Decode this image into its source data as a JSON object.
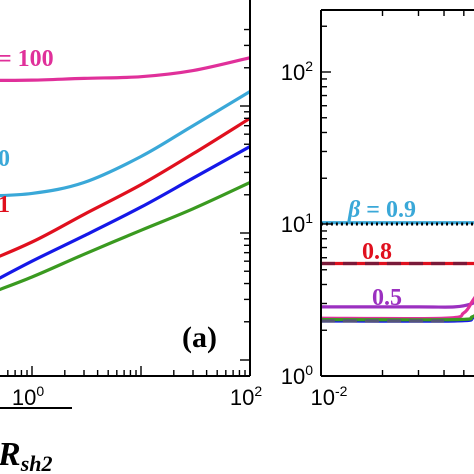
{
  "chart_data": [
    {
      "type": "line",
      "panel_label": "(a)",
      "x_scale": "log",
      "y_scale": "log",
      "xlim": [
        0.1,
        100
      ],
      "ylim": [
        0.8,
        450
      ],
      "x_tick_labels": [
        {
          "base": "10",
          "exp": "0",
          "value": 1
        },
        {
          "base": "10",
          "exp": "2",
          "value": 100
        }
      ],
      "xlabel_visible": "R",
      "xlabel_sub": "sh2",
      "grid": false,
      "series": [
        {
          "label": "= 100",
          "color": "#e0309a",
          "x": [
            0.1,
            0.3,
            1,
            3,
            10,
            30,
            100
          ],
          "y": [
            170,
            160,
            160,
            165,
            170,
            190,
            240
          ]
        },
        {
          "label": "0",
          "color": "#3aa8d8",
          "x": [
            0.1,
            0.3,
            1,
            3,
            10,
            30,
            100
          ],
          "y": [
            20,
            19.5,
            20.5,
            25,
            40,
            70,
            130
          ]
        },
        {
          "label": "1",
          "color": "#e0101e",
          "x": [
            0.1,
            0.3,
            1,
            3,
            10,
            30,
            100
          ],
          "y": [
            4,
            5.5,
            8.5,
            14,
            24,
            42,
            80
          ]
        },
        {
          "label": "",
          "color": "#1518e8",
          "x": [
            0.1,
            0.3,
            1,
            3,
            10,
            30,
            100
          ],
          "y": [
            2.2,
            3.5,
            6,
            9.5,
            16,
            27,
            48
          ]
        },
        {
          "label": "",
          "color": "#3a9a20",
          "x": [
            0.1,
            0.3,
            1,
            3,
            10,
            30,
            100
          ],
          "y": [
            1.9,
            3.0,
            4.5,
            6.8,
            10.5,
            15.5,
            25
          ]
        }
      ]
    },
    {
      "type": "line",
      "x_scale": "log",
      "y_scale": "log",
      "xlim": [
        0.01,
        0.06
      ],
      "ylim": [
        1,
        200
      ],
      "x_tick_labels": [
        {
          "base": "10",
          "exp": "-2",
          "value": 0.01
        }
      ],
      "y_tick_labels": [
        {
          "base": "10",
          "exp": "0",
          "value": 1
        },
        {
          "base": "10",
          "exp": "1",
          "value": 10
        },
        {
          "base": "10",
          "exp": "2",
          "value": 100
        }
      ],
      "beta_symbol": "β",
      "grid": false,
      "series": [
        {
          "label": "= 0.9",
          "color": "#3aa8d8",
          "style": "solid",
          "x": [
            0.01,
            0.06
          ],
          "y": [
            10.2,
            10.2
          ]
        },
        {
          "label": "",
          "color": "#000000",
          "style": "dotted",
          "x": [
            0.01,
            0.06
          ],
          "y": [
            10.0,
            10.0
          ]
        },
        {
          "label": "0.8",
          "color": "#e0101e",
          "style": "solid",
          "x": [
            0.01,
            0.06
          ],
          "y": [
            5.5,
            5.5
          ]
        },
        {
          "label": "",
          "color": "#7a1a3a",
          "style": "dashed",
          "x": [
            0.01,
            0.06
          ],
          "y": [
            5.5,
            5.5
          ]
        },
        {
          "label": "0.5",
          "color": "#9b30c0",
          "style": "solid",
          "x": [
            0.01,
            0.03,
            0.045,
            0.055,
            0.06
          ],
          "y": [
            2.85,
            2.85,
            2.85,
            3.0,
            3.3
          ]
        },
        {
          "label": "",
          "color": "#e0309a",
          "style": "solid",
          "x": [
            0.01,
            0.04,
            0.05,
            0.055,
            0.06
          ],
          "y": [
            2.4,
            2.4,
            2.6,
            3.1,
            3.7
          ]
        },
        {
          "label": "",
          "color": "#1518e8",
          "style": "solid",
          "x": [
            0.01,
            0.045,
            0.055,
            0.06
          ],
          "y": [
            2.3,
            2.3,
            2.4,
            2.6
          ]
        },
        {
          "label": "",
          "color": "#3a9a20",
          "style": "solid",
          "x": [
            0.01,
            0.045,
            0.055,
            0.06
          ],
          "y": [
            2.35,
            2.35,
            2.45,
            2.7
          ]
        },
        {
          "label": "",
          "color": "#555577",
          "style": "dashed",
          "x": [
            0.01,
            0.04
          ],
          "y": [
            2.3,
            2.3
          ]
        }
      ]
    }
  ]
}
